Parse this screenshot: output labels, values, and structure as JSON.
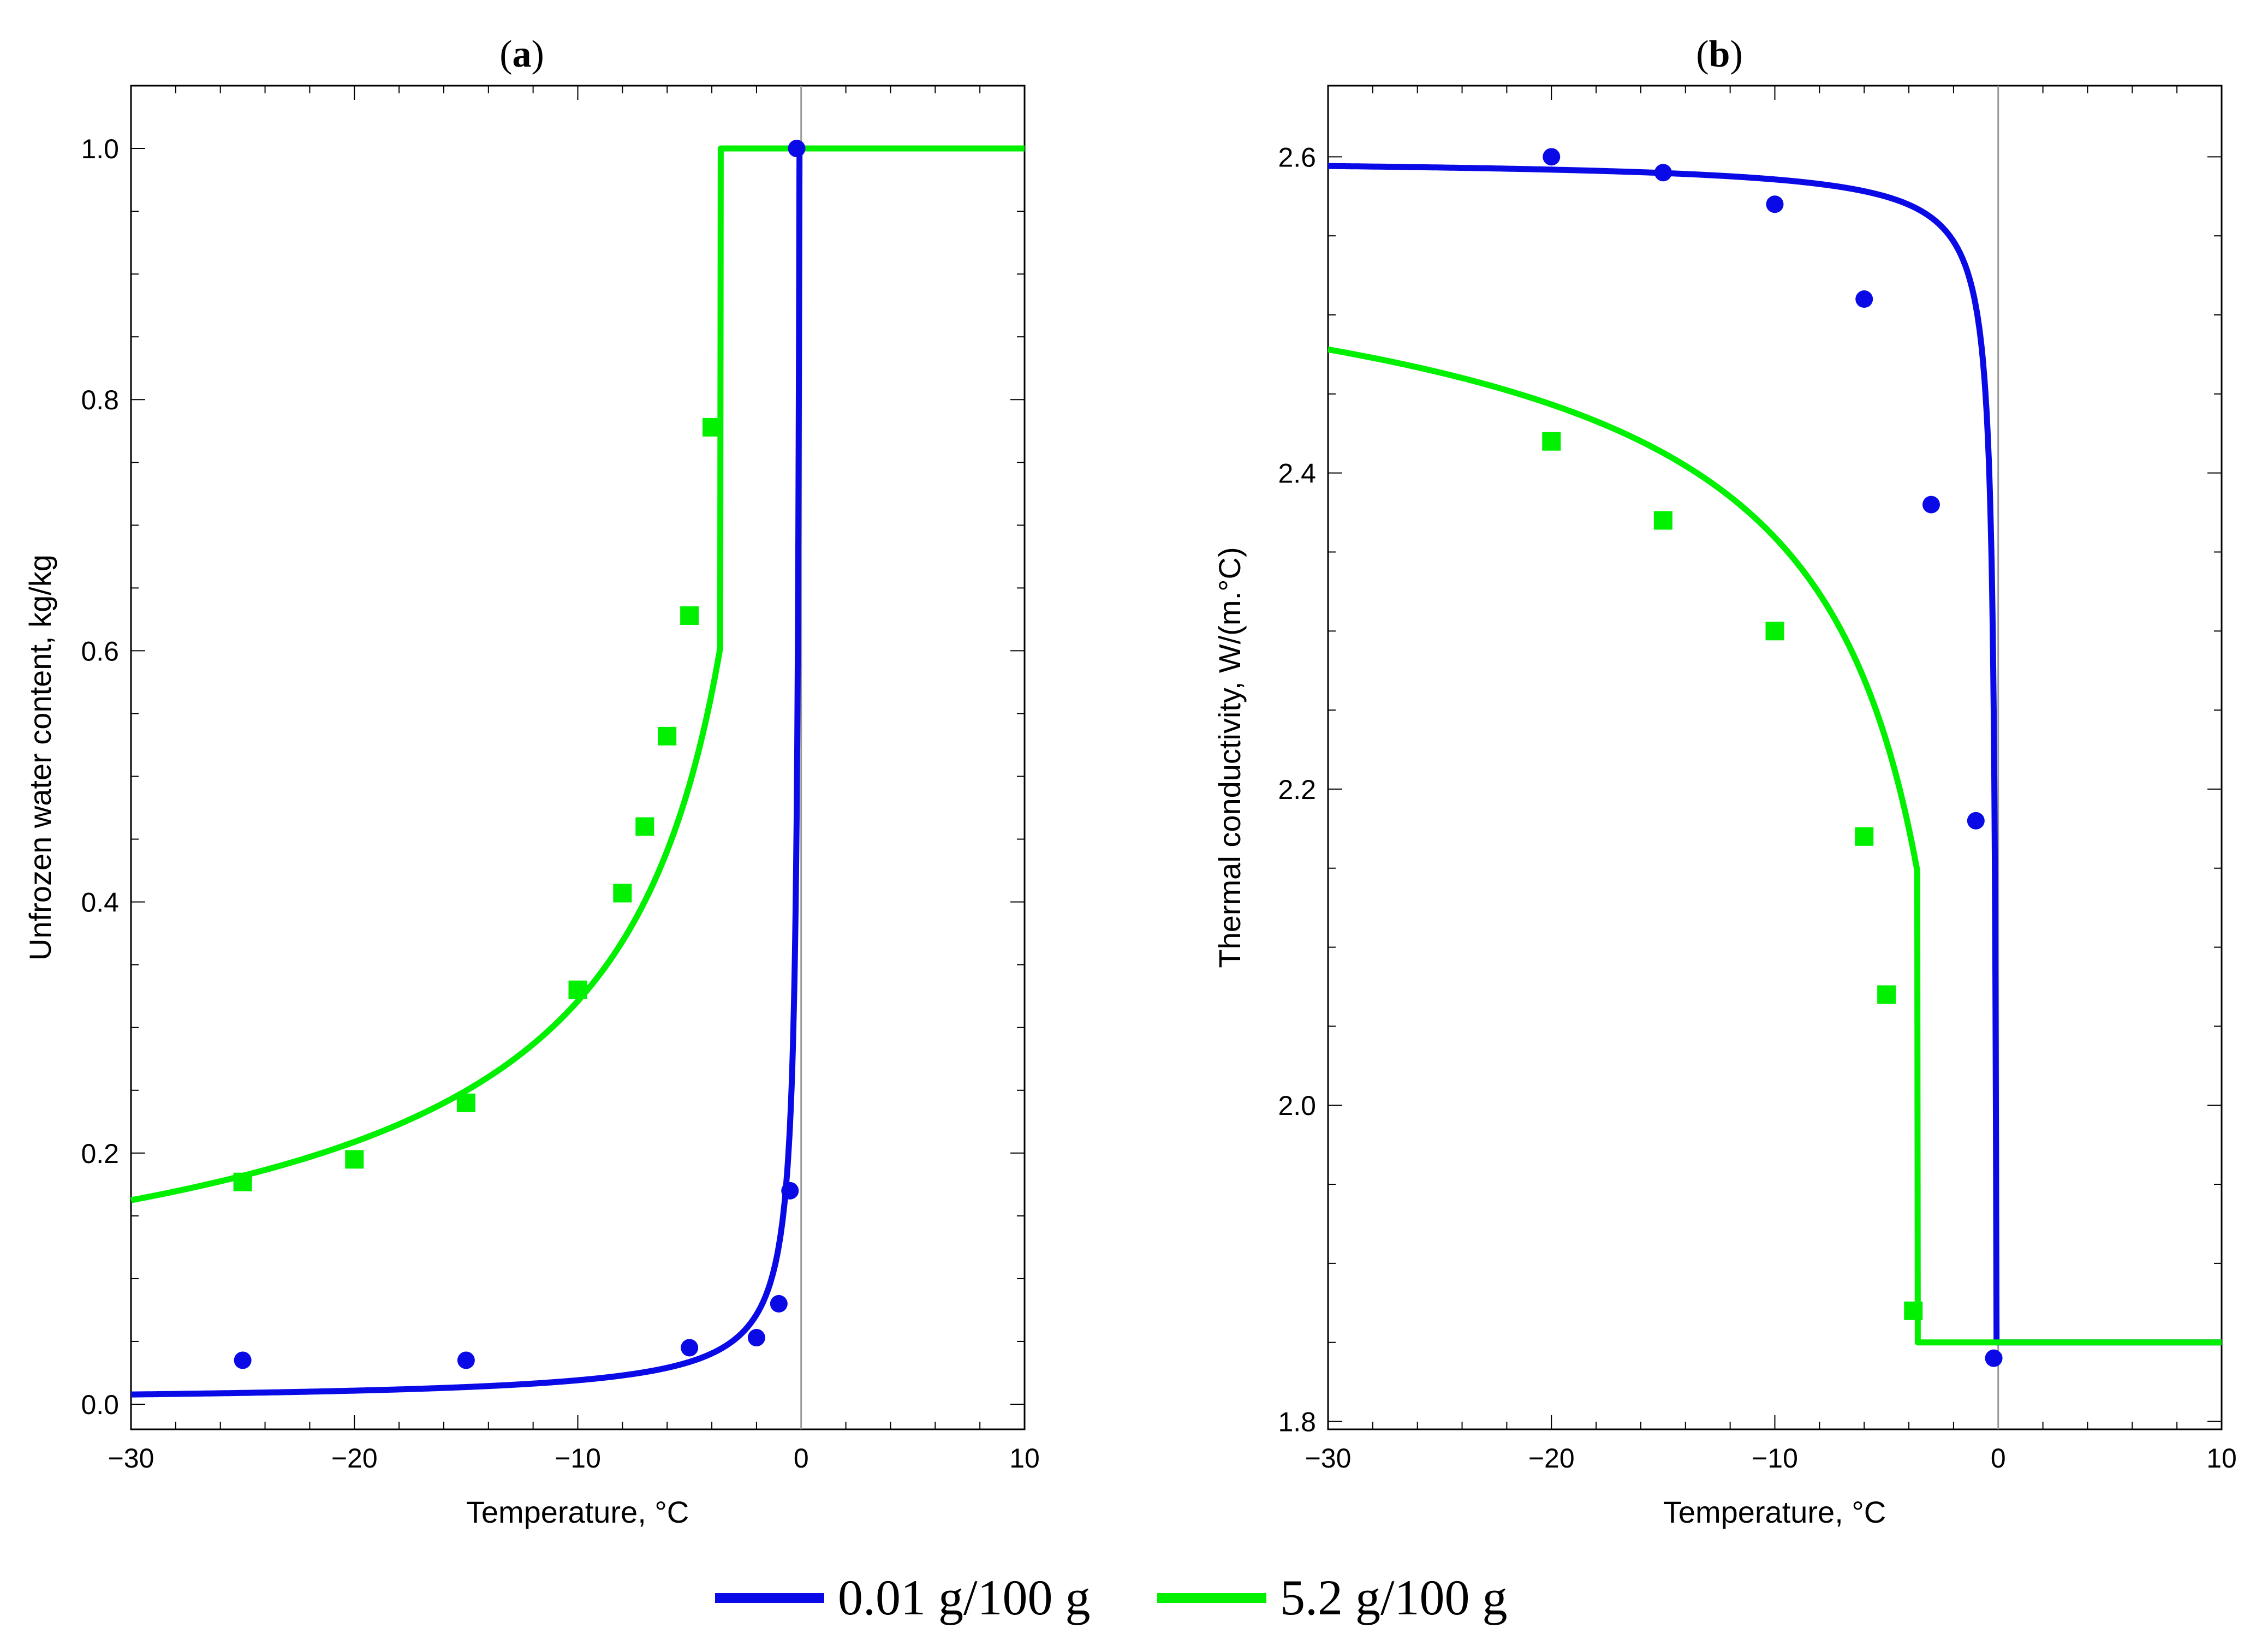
{
  "chart_data": [
    {
      "type": "line",
      "panel": "(a)",
      "title_prefix": "(",
      "title_letter": "a",
      "title_suffix": ")",
      "xlabel": "Temperature, °C",
      "ylabel": "Unfrozen water content, kg/kg",
      "xlim": [
        -30,
        10
      ],
      "ylim": [
        -0.02,
        1.05
      ],
      "xticks": [
        -30,
        -20,
        -10,
        0,
        10
      ],
      "xtick_labels": [
        "−30",
        "−20",
        "−10",
        "0",
        "10"
      ],
      "yticks": [
        0.0,
        0.2,
        0.4,
        0.6,
        0.8,
        1.0
      ],
      "ytick_labels": [
        "0.0",
        "0.2",
        "0.4",
        "0.6",
        "0.8",
        "1.0"
      ],
      "series": [
        {
          "name": "0.01 g/100 g",
          "color": "#0a0ae6",
          "marker": "circle",
          "curve": {
            "tf": -0.08,
            "b": 0.0235,
            "plateau_start": -0.08
          },
          "points": [
            {
              "x": -25,
              "y": 0.035
            },
            {
              "x": -15,
              "y": 0.035
            },
            {
              "x": -5,
              "y": 0.045
            },
            {
              "x": -2,
              "y": 0.053
            },
            {
              "x": -1,
              "y": 0.08
            },
            {
              "x": -0.5,
              "y": 0.17
            },
            {
              "x": -0.2,
              "y": 1.0
            }
          ]
        },
        {
          "name": "5.2 g/100 g",
          "color": "#00f000",
          "marker": "square",
          "curve": {
            "tf": -1.6,
            "b": 0.155,
            "plateau_start": -3.6
          },
          "points": [
            {
              "x": -25,
              "y": 0.177
            },
            {
              "x": -20,
              "y": 0.195
            },
            {
              "x": -15,
              "y": 0.24
            },
            {
              "x": -10,
              "y": 0.33
            },
            {
              "x": -8,
              "y": 0.407
            },
            {
              "x": -7,
              "y": 0.46
            },
            {
              "x": -6,
              "y": 0.532
            },
            {
              "x": -5,
              "y": 0.628
            },
            {
              "x": -4,
              "y": 0.778
            }
          ]
        }
      ]
    },
    {
      "type": "line",
      "panel": "(b)",
      "title_prefix": "(",
      "title_letter": "b",
      "title_suffix": ")",
      "xlabel": "Temperature, °C",
      "ylabel": "Thermal conductivity, W/(m.°C)",
      "xlim": [
        -30,
        10
      ],
      "ylim": [
        1.795,
        2.645
      ],
      "xticks": [
        -30,
        -20,
        -10,
        0,
        10
      ],
      "xtick_labels": [
        "−30",
        "−20",
        "−10",
        "0",
        "10"
      ],
      "yticks": [
        1.8,
        2.0,
        2.2,
        2.4,
        2.6
      ],
      "ytick_labels": [
        "1.8",
        "2.0",
        "2.2",
        "2.4",
        "2.6"
      ],
      "series": [
        {
          "name": "0.01 g/100 g",
          "color": "#0a0ae6",
          "marker": "circle",
          "curve": {
            "tf": -0.08,
            "b": 0.0235,
            "plateau_start": -0.08,
            "lambda_u": 1.85,
            "lambda_f": 2.6
          },
          "points": [
            {
              "x": -20,
              "y": 2.6
            },
            {
              "x": -15,
              "y": 2.59
            },
            {
              "x": -10,
              "y": 2.57
            },
            {
              "x": -6,
              "y": 2.51
            },
            {
              "x": -3,
              "y": 2.38
            },
            {
              "x": -1,
              "y": 2.18
            },
            {
              "x": -0.2,
              "y": 1.84
            }
          ]
        },
        {
          "name": "5.2 g/100 g",
          "color": "#00f000",
          "marker": "square",
          "curve": {
            "tf": -1.6,
            "b": 0.155,
            "plateau_start": -3.6,
            "lambda_u": 1.85,
            "lambda_f": 2.6
          },
          "points": [
            {
              "x": -20,
              "y": 2.42
            },
            {
              "x": -15,
              "y": 2.37
            },
            {
              "x": -10,
              "y": 2.3
            },
            {
              "x": -6,
              "y": 2.17
            },
            {
              "x": -5,
              "y": 2.07
            },
            {
              "x": -3.8,
              "y": 1.87
            }
          ]
        }
      ]
    }
  ],
  "legend": [
    {
      "label": "0.01 g/100 g",
      "color": "#0a0ae6"
    },
    {
      "label": "5.2 g/100 g",
      "color": "#00f000"
    }
  ]
}
